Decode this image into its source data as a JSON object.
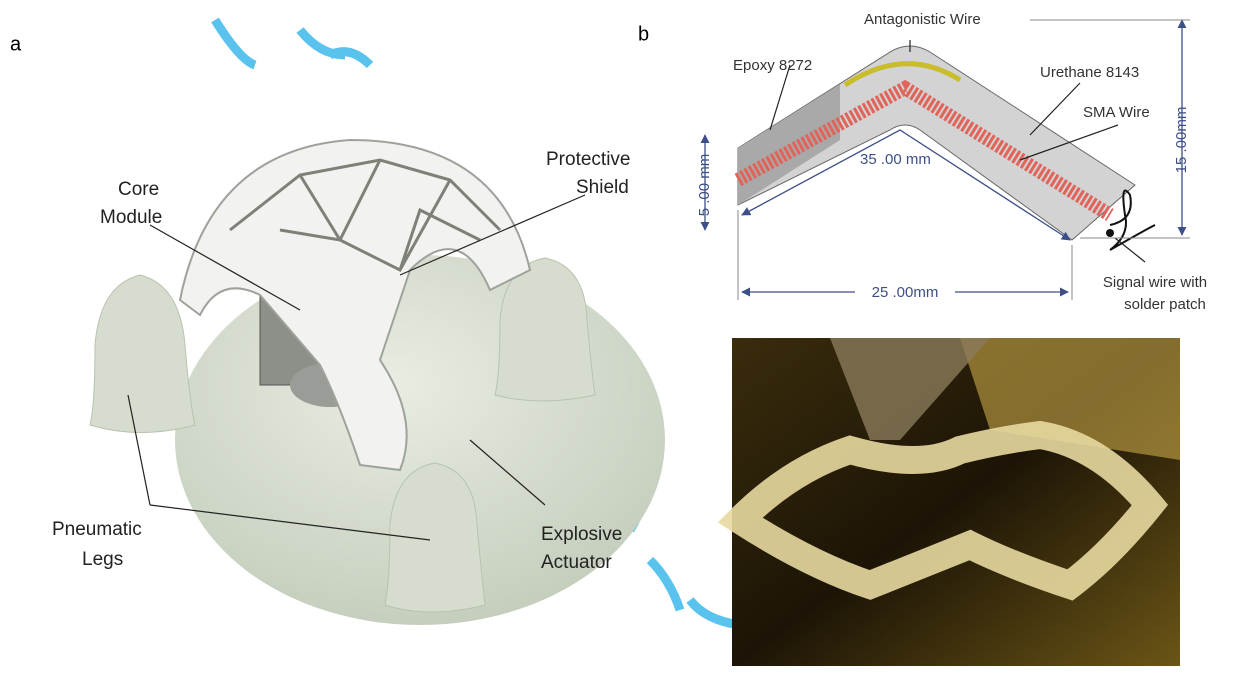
{
  "panel_a": {
    "label": "a",
    "callouts": {
      "core_module": [
        "Core",
        "Module"
      ],
      "protective_shield": [
        "Protective",
        "Shield"
      ],
      "pneumatic_legs": [
        "Pneumatic",
        "Legs"
      ],
      "explosive_actuator": [
        "Explosive",
        "Actuator"
      ]
    }
  },
  "panel_b": {
    "label": "b",
    "diagram": {
      "antagonistic_wire": "Antagonistic Wire",
      "epoxy": "Epoxy 8272",
      "urethane": "Urethane 8143",
      "sma_wire": "SMA Wire",
      "dim_arc": "35 .00 mm",
      "dim_thickness": "5 .00 mm",
      "dim_height": "15 .00mm",
      "dim_width": "25 .00mm",
      "signal_wire": [
        "Signal wire with",
        "solder patch"
      ]
    }
  }
}
